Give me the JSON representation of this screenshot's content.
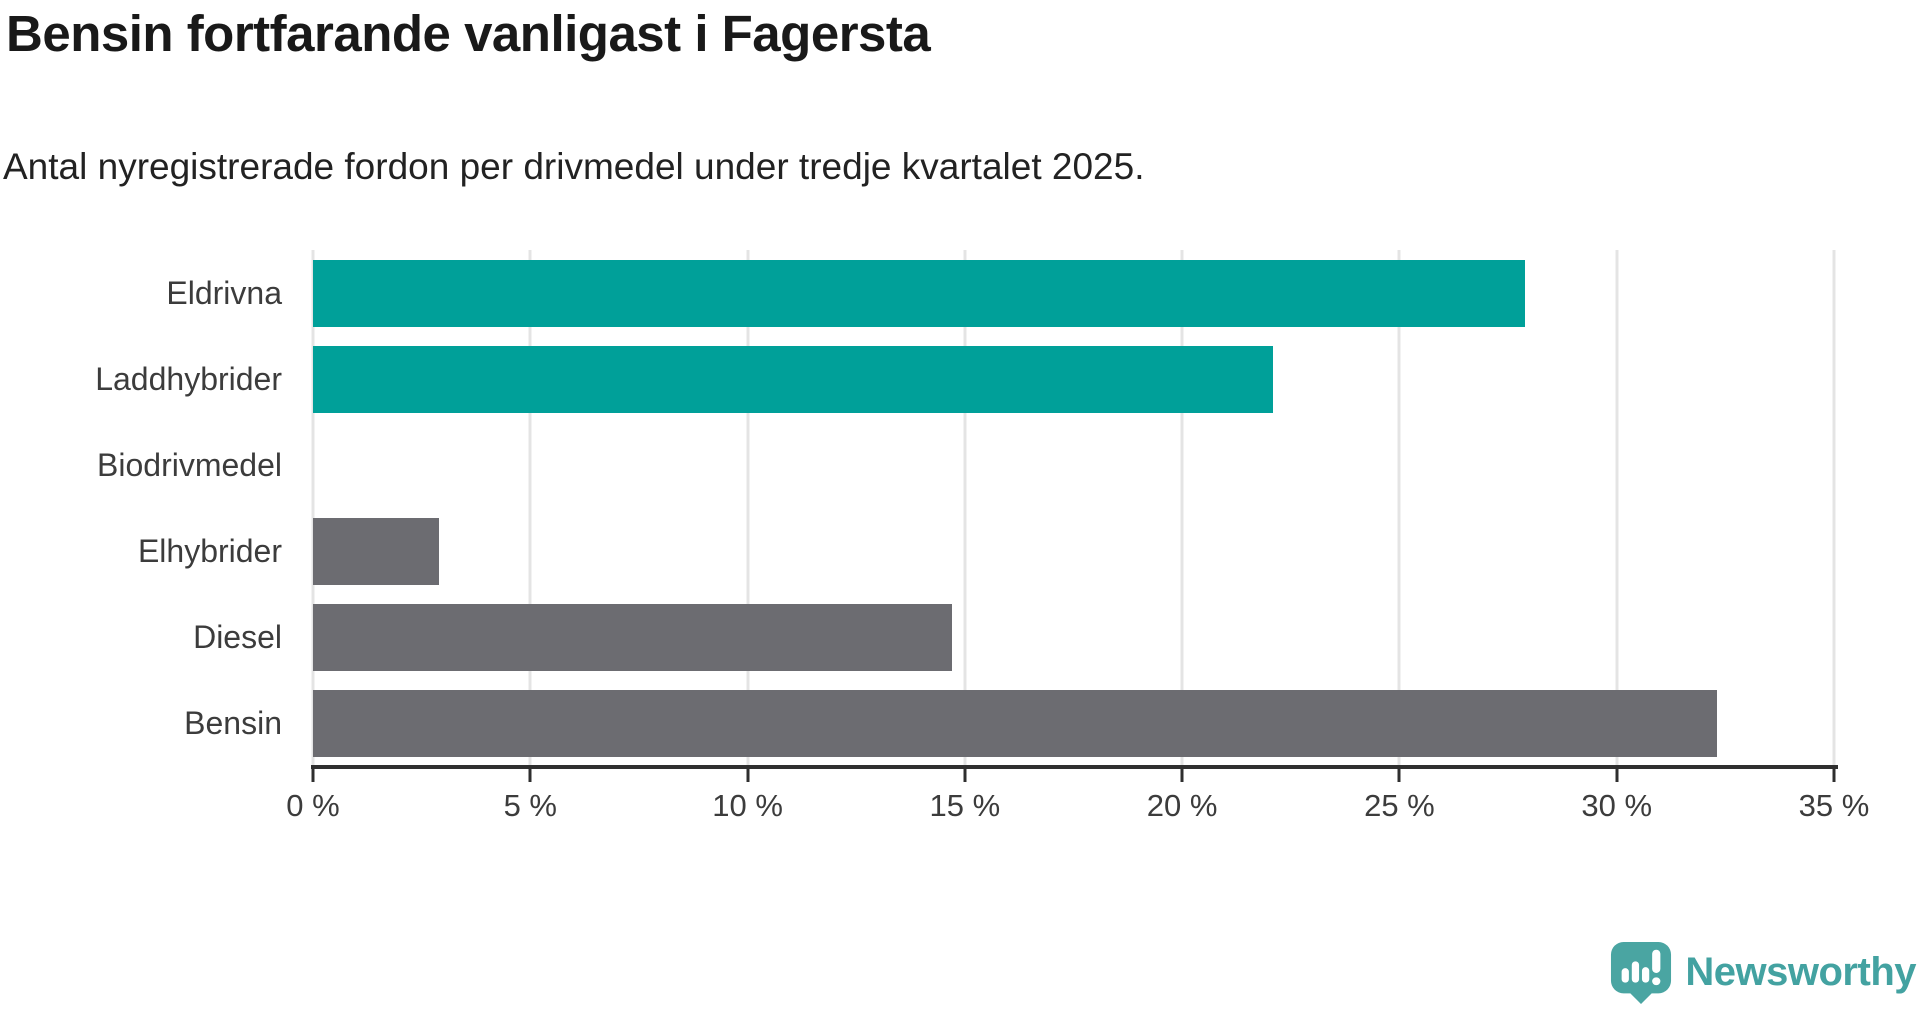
{
  "title": "Bensin fortfarande vanligast i Fagersta",
  "subtitle": "Antal nyregistrerade fordon per drivmedel under tredje kvartalet 2025.",
  "chart_data": {
    "type": "bar",
    "orientation": "horizontal",
    "title": "Bensin fortfarande vanligast i Fagersta",
    "subtitle": "Antal nyregistrerade fordon per drivmedel under tredje kvartalet 2025.",
    "categories": [
      "Eldrivna",
      "Laddhybrider",
      "Biodrivmedel",
      "Elhybrider",
      "Diesel",
      "Bensin"
    ],
    "values": [
      27.9,
      22.1,
      0,
      2.9,
      14.7,
      32.3
    ],
    "unit": "%",
    "bar_colors": [
      "#00a099",
      "#00a099",
      "#00a099",
      "#6c6c71",
      "#6c6c71",
      "#6c6c71"
    ],
    "xlim": [
      0,
      35
    ],
    "x_ticks": [
      0,
      5,
      10,
      15,
      20,
      25,
      30,
      35
    ],
    "x_tick_labels": [
      "0 %",
      "5 %",
      "10 %",
      "15 %",
      "20 %",
      "25 %",
      "30 %",
      "35 %"
    ],
    "grid": "vertical-only",
    "legend": "none"
  },
  "colors": {
    "teal_bar": "#00a099",
    "gray_bar": "#6c6c71",
    "axis": "#2f2f2f",
    "gridline": "#e4e4e4",
    "title_text": "#191919",
    "label_text": "#3c3c3c",
    "brand_teal": "#43a2a1"
  },
  "footer": {
    "brand": "Newsworthy"
  }
}
